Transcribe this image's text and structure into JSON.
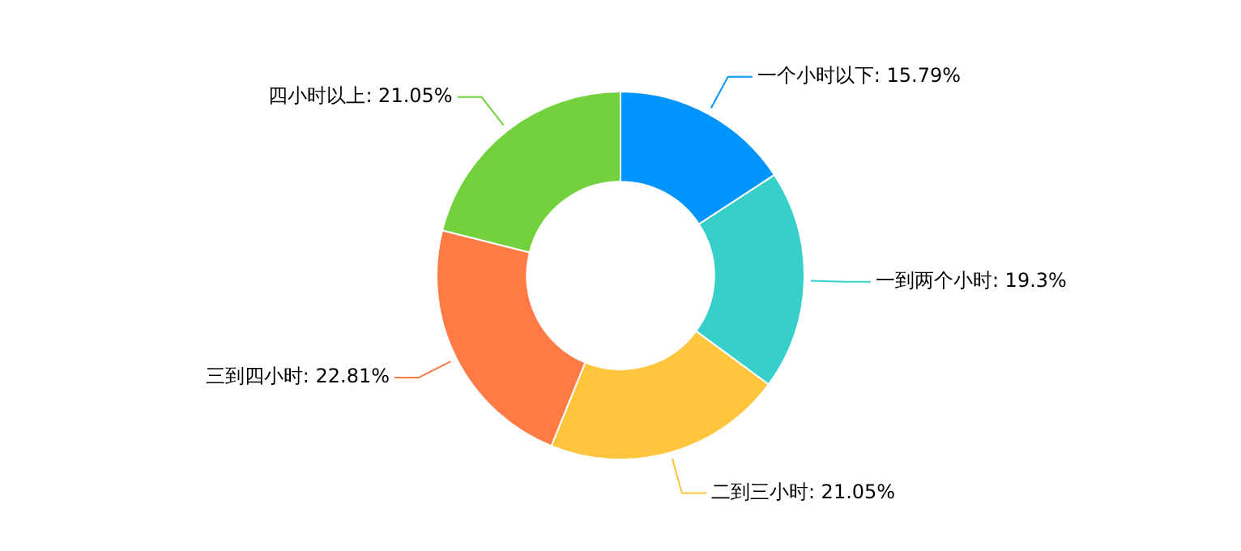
{
  "chart_data": {
    "type": "donut",
    "categories": [
      "一个小时以下",
      "一到两个小时",
      "二到三小时",
      "三到四小时",
      "四小时以上"
    ],
    "values": [
      15.79,
      19.3,
      21.05,
      22.81,
      21.05
    ],
    "value_labels": [
      "15.79%",
      "19.3%",
      "21.05%",
      "22.81%",
      "21.05%"
    ],
    "colors": [
      "#0094ff",
      "#36cfc9",
      "#ffc53d",
      "#ff7a45",
      "#73d13d"
    ],
    "legend": false
  }
}
